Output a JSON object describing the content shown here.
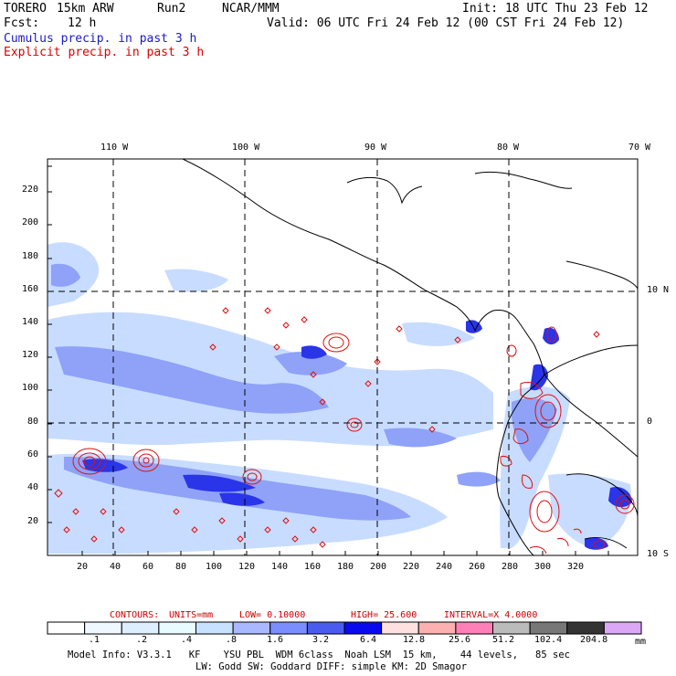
{
  "header": {
    "model": "TORERO",
    "resolution": "15km ARW",
    "run": "Run2",
    "org": "NCAR/MMM",
    "init": "Init: 18 UTC Thu 23 Feb 12",
    "fcst_label": "Fcst:",
    "fcst_value": "12 h",
    "valid": "Valid: 06 UTC Fri 24 Feb 12 (00 CST Fri 24 Feb 12)",
    "cumulus_label": "Cumulus precip. in past 3 h",
    "explicit_label": "Explicit precip. in past 3 h"
  },
  "colors": {
    "cumulus": "#1a1acc",
    "explicit": "#dd0000",
    "contour": "#e01010"
  },
  "map": {
    "lon_labels": [
      "110 W",
      "100 W",
      "90 W",
      "80 W",
      "70 W"
    ],
    "lat_labels": [
      "10 N",
      "0",
      "10 S"
    ],
    "x_ticks": [
      "20",
      "40",
      "60",
      "80",
      "100",
      "120",
      "140",
      "160",
      "180",
      "200",
      "220",
      "240",
      "260",
      "280",
      "300",
      "320"
    ],
    "y_ticks": [
      "20",
      "40",
      "60",
      "80",
      "100",
      "120",
      "140",
      "160",
      "180",
      "200",
      "220"
    ]
  },
  "contours": {
    "label": "CONTOURS:",
    "units": "UNITS=mm",
    "low": "LOW= 0.10000",
    "high": "HIGH= 25.600",
    "interval": "INTERVAL=X 4.0000"
  },
  "colorbar": {
    "colors": [
      "#ffffff",
      "#f0f8ff",
      "#dceeff",
      "#e8fbff",
      "#c6e2ff",
      "#aab8ff",
      "#7a8eff",
      "#4a5cf0",
      "#0a0aee",
      "#fde0e0",
      "#fcb0b0",
      "#ff80b8",
      "#bbbbbb",
      "#777777",
      "#333333",
      "#dba8f8"
    ],
    "labels": [
      ".1",
      ".2",
      ".4",
      ".8",
      "1.6",
      "3.2",
      "6.4",
      "12.8",
      "25.6",
      "51.2",
      "102.4",
      "204.8"
    ],
    "unit": "mm"
  },
  "footer": {
    "line1": "Model Info: V3.3.1   KF    YSU PBL  WDM 6class  Noah LSM  15 km,    44 levels,   85 sec",
    "line2": "LW: Godd SW: Goddard DIFF: simple KM: 2D Smagor"
  }
}
